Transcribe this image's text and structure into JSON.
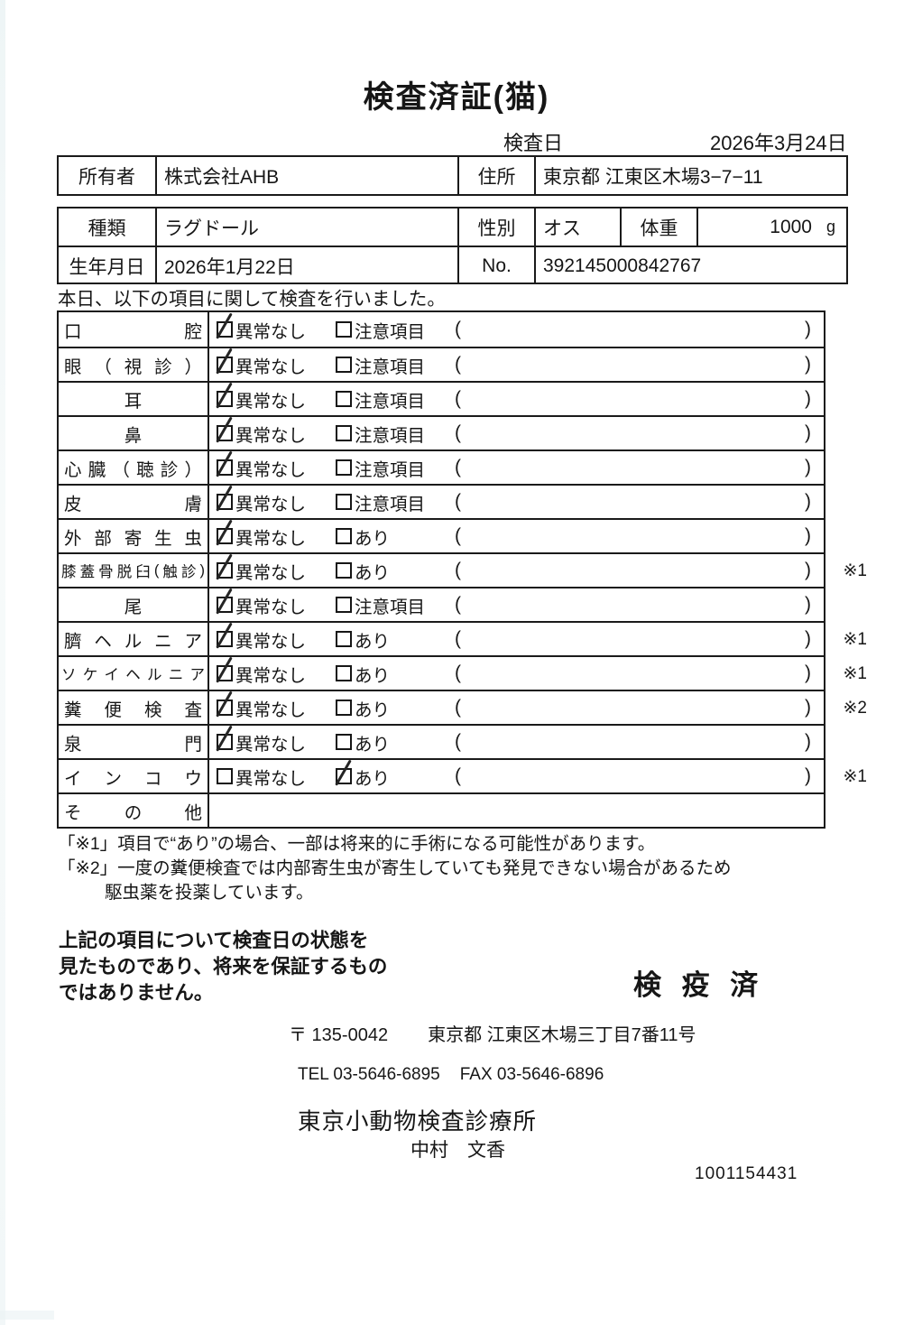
{
  "title": "検査済証(猫)",
  "exam_date": {
    "label": "検査日",
    "value": "2026年3月24日"
  },
  "owner": {
    "label": "所有者",
    "value": "株式会社AHB",
    "address_label": "住所",
    "address": "東京都 江東区木場3−7−11"
  },
  "animal": {
    "breed_label": "種類",
    "breed": "ラグドール",
    "sex_label": "性別",
    "sex": "オス",
    "weight_label": "体重",
    "weight": "1000",
    "weight_unit": "g",
    "birth_label": "生年月日",
    "birth": "2026年1月22日",
    "no_label": "No.",
    "no_value": "392145000842767"
  },
  "intro": "本日、以下の項目に関して検査を行いました。",
  "exam_table": {
    "ok_label": "異常なし",
    "paren_open": "(",
    "paren_close": ")",
    "rows": [
      {
        "label": "口腔",
        "align": "spread",
        "opt2": "注意項目",
        "ok": true,
        "alt": false,
        "note": ""
      },
      {
        "label": "眼（視診）",
        "align": "spread",
        "opt2": "注意項目",
        "ok": true,
        "alt": false,
        "note": ""
      },
      {
        "label": "耳",
        "align": "center",
        "opt2": "注意項目",
        "ok": true,
        "alt": false,
        "note": ""
      },
      {
        "label": "鼻",
        "align": "center",
        "opt2": "注意項目",
        "ok": true,
        "alt": false,
        "note": ""
      },
      {
        "label": "心臓（聴診）",
        "align": "spread",
        "opt2": "注意項目",
        "ok": true,
        "alt": false,
        "note": ""
      },
      {
        "label": "皮膚",
        "align": "spread",
        "opt2": "注意項目",
        "ok": true,
        "alt": false,
        "note": ""
      },
      {
        "label": "外部寄生虫",
        "align": "spread",
        "opt2": "あり",
        "ok": true,
        "alt": false,
        "note": ""
      },
      {
        "label": "膝蓋骨脱臼(触診)",
        "align": "fill",
        "opt2": "あり",
        "ok": true,
        "alt": false,
        "note": "※1"
      },
      {
        "label": "尾",
        "align": "center",
        "opt2": "注意項目",
        "ok": true,
        "alt": false,
        "note": ""
      },
      {
        "label": "臍ヘルニア",
        "align": "spread",
        "opt2": "あり",
        "ok": true,
        "alt": false,
        "note": "※1"
      },
      {
        "label": "ソケイヘルニア",
        "align": "spread",
        "opt2": "あり",
        "ok": true,
        "alt": false,
        "note": "※1"
      },
      {
        "label": "糞便検査",
        "align": "spread",
        "opt2": "あり",
        "ok": true,
        "alt": false,
        "note": "※2"
      },
      {
        "label": "泉門",
        "align": "spread",
        "opt2": "あり",
        "ok": true,
        "alt": false,
        "note": ""
      },
      {
        "label": "インコウ",
        "align": "spread",
        "opt2": "あり",
        "ok": false,
        "alt": true,
        "note": "※1"
      },
      {
        "label": "その他",
        "align": "spread",
        "opt2": "",
        "ok": null,
        "alt": null,
        "note": ""
      }
    ]
  },
  "notes": [
    {
      "text": "「※1」項目で“あり”の場合、一部は将来的に手術になる可能性があります。",
      "indent": false
    },
    {
      "text": "「※2」一度の糞便検査では内部寄生虫が寄生していても発見できない場合があるため",
      "indent": false
    },
    {
      "text": "駆虫薬を投薬しています。",
      "indent": true
    }
  ],
  "disclaimer": [
    "上記の項目について検査日の状態を",
    "見たものであり、将来を保証するもの",
    "ではありません。"
  ],
  "stamp": "検 疫 済",
  "clinic": {
    "postal": "〒 135-0042",
    "address": "東京都 江東区木場三丁目7番11号",
    "tel": "TEL 03-5646-6895",
    "fax": "FAX 03-5646-6896",
    "name": "東京小動物検査診療所",
    "vet": "中村　文香"
  },
  "doc_number": "1001154431"
}
